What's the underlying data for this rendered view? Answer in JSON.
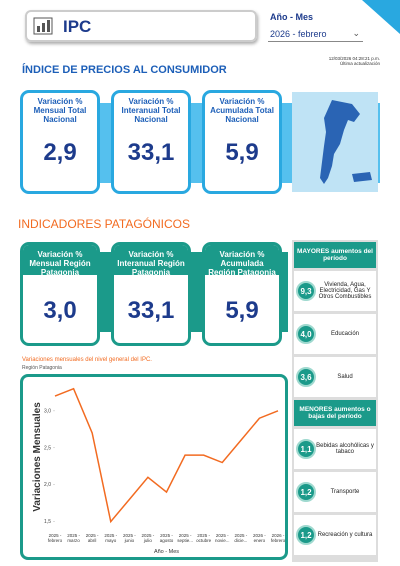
{
  "header": {
    "title": "IPC",
    "filter_label": "Año - Mes",
    "filter_value": "2026 - febrero",
    "timestamp": "12/03/2026 04:28:21 p.m.",
    "timestamp_label": "Última actualización"
  },
  "national": {
    "title": "ÍNDICE DE PRECIOS AL CONSUMIDOR",
    "cards": [
      {
        "label": "Variación % Mensual Total Nacional",
        "value": "2,9"
      },
      {
        "label": "Variación % Interanual Total Nacional",
        "value": "33,1"
      },
      {
        "label": "Variación % Acumulada Total Nacional",
        "value": "5,9"
      }
    ]
  },
  "patagonia": {
    "title": "INDICADORES PATAGÓNICOS",
    "cards": [
      {
        "label": "Variación % Mensual Región Patagonia",
        "value": "3,0"
      },
      {
        "label": "Variación % Interanual Región Patagonia",
        "value": "33,1"
      },
      {
        "label": "Variación % Acumulada Región Patagonia",
        "value": "5,9"
      }
    ]
  },
  "rankings": {
    "top_title": "MAYORES aumentos del período",
    "top": [
      {
        "value": "9,3",
        "label": "Vivienda, Agua, Electricidad, Gas Y Otros Combustibles"
      },
      {
        "value": "4,0",
        "label": "Educación"
      },
      {
        "value": "3,6",
        "label": "Salud"
      }
    ],
    "bottom_title": "MENORES aumentos o bajas del período",
    "bottom": [
      {
        "value": "1,1",
        "label": "Bebidas alcohólicas y tabaco"
      },
      {
        "value": "1,2",
        "label": "Transporte"
      },
      {
        "value": "1,2",
        "label": "Recreación y cultura"
      }
    ]
  },
  "chart_data": {
    "type": "line",
    "title": "Variaciones mensuales del nivel general del IPC.",
    "subtitle": "Región Patagonia",
    "x_label": "Año - Mes",
    "y_label": "Variaciones Mensuales",
    "categories": [
      "2025 - febrero",
      "2025 - marzo",
      "2025 - abril",
      "2025 - mayo",
      "2025 - junio",
      "2025 - julio",
      "2025 - agosto",
      "2025 - septie...",
      "2025 - octubre",
      "2025 - novie...",
      "2025 - dicie...",
      "2026 - enero",
      "2026 - febrero"
    ],
    "series": [
      {
        "name": "Variaciones Mensuales",
        "color": "#f26b21",
        "values": [
          3.2,
          3.3,
          2.7,
          1.5,
          1.8,
          2.1,
          1.9,
          2.4,
          2.4,
          2.3,
          2.6,
          2.9,
          3.0
        ]
      }
    ],
    "ylim": [
      1.4,
      3.35
    ],
    "yticks": [
      {
        "value": 1.5,
        "label": "1,5"
      },
      {
        "value": 2.0,
        "label": "2,0"
      },
      {
        "value": 2.5,
        "label": "2,5"
      },
      {
        "value": 3.0,
        "label": "3,0"
      }
    ],
    "grid": false
  }
}
